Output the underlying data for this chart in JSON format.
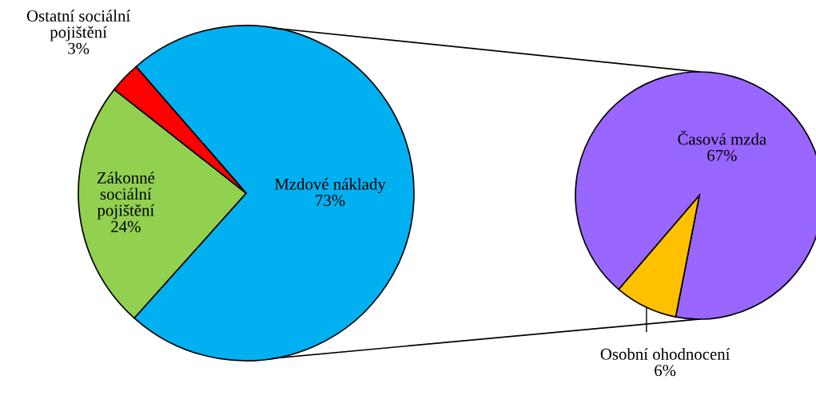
{
  "chart_data": [
    {
      "type": "pie",
      "categories": [
        "Mzdové náklady",
        "Zákonné\nsociální\npojištění",
        "Ostatní sociální\npojištění"
      ],
      "values": [
        73,
        24,
        3
      ],
      "value_labels": [
        "73%",
        "24%",
        "3%"
      ],
      "colors": [
        "#00b0f0",
        "#92d050",
        "#ff0000"
      ]
    },
    {
      "type": "pie",
      "categories": [
        "Časová mzda",
        "Osobní ohodnocení"
      ],
      "values": [
        67,
        6
      ],
      "value_labels": [
        "67%",
        "6%"
      ],
      "colors": [
        "#9966ff",
        "#ffc000"
      ]
    }
  ]
}
